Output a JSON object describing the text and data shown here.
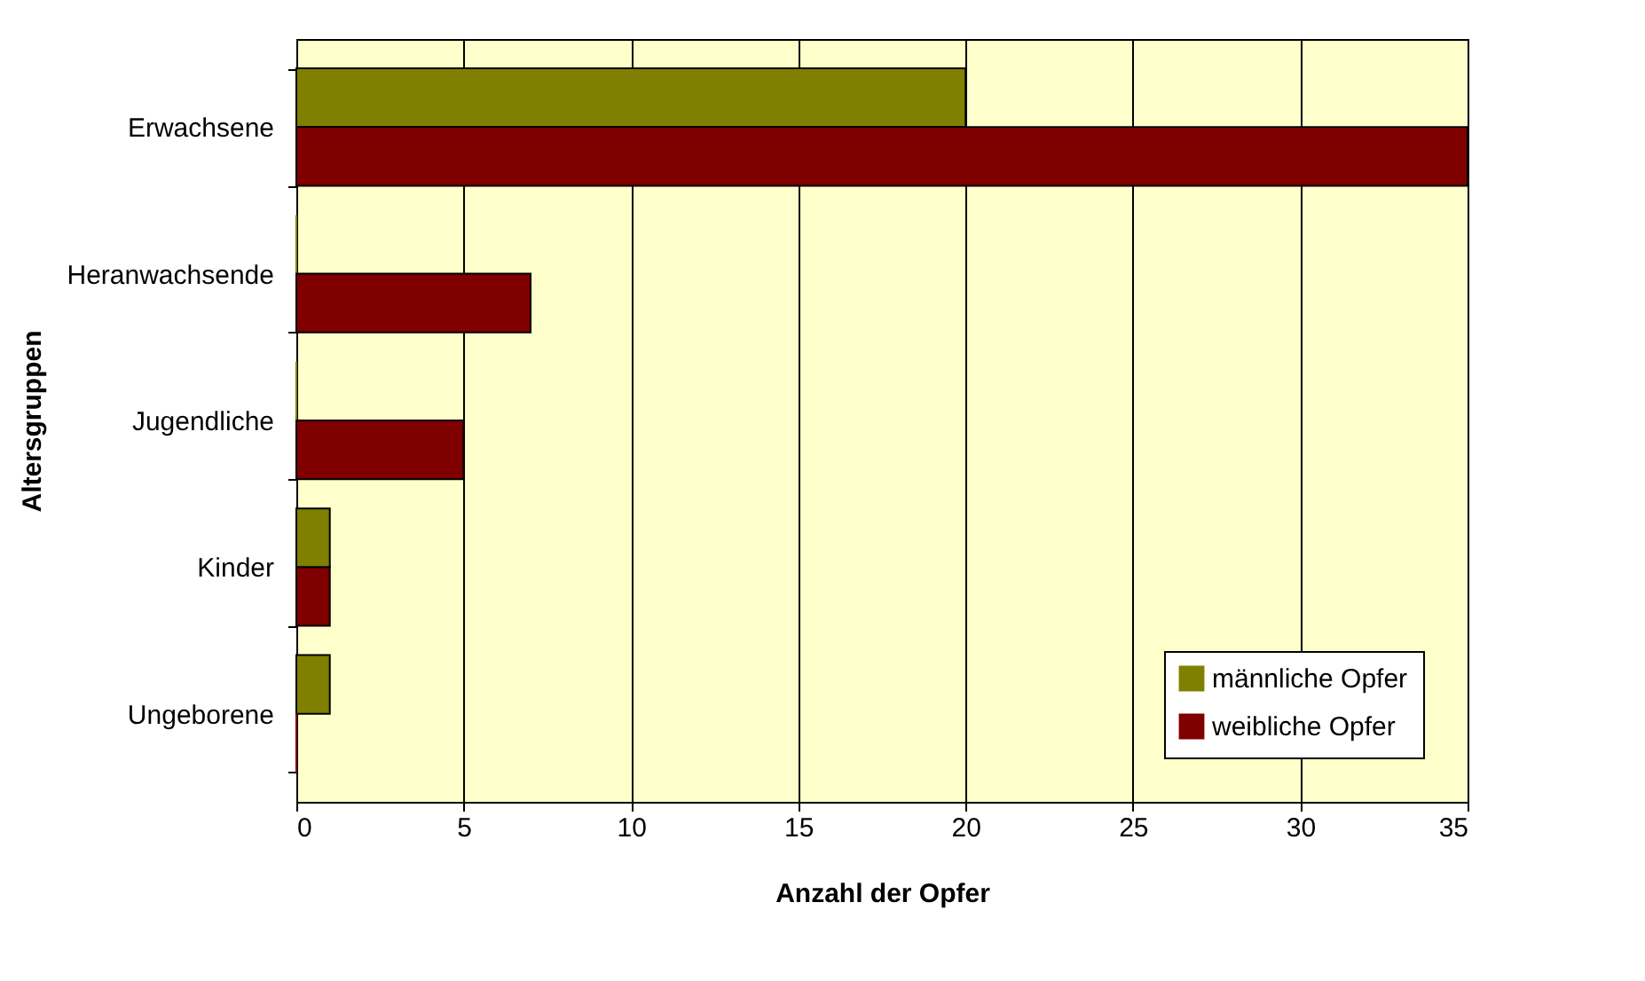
{
  "chart_data": {
    "type": "bar",
    "orientation": "horizontal",
    "xlabel": "Anzahl der Opfer",
    "ylabel": "Altersgruppen",
    "categories": [
      "Erwachsene",
      "Heranwachsende",
      "Jugendliche",
      "Kinder",
      "Ungeborene"
    ],
    "series": [
      {
        "name": "männliche Opfer",
        "color": "#808000",
        "values": [
          20,
          0,
          0,
          1,
          1
        ]
      },
      {
        "name": "weibliche Opfer",
        "color": "#800000",
        "values": [
          35,
          7,
          5,
          1,
          0
        ]
      }
    ],
    "xlim": [
      0,
      35
    ],
    "xticks": [
      0,
      5,
      10,
      15,
      20,
      25,
      30,
      35
    ],
    "grid": "x",
    "legend": "bottom right"
  }
}
